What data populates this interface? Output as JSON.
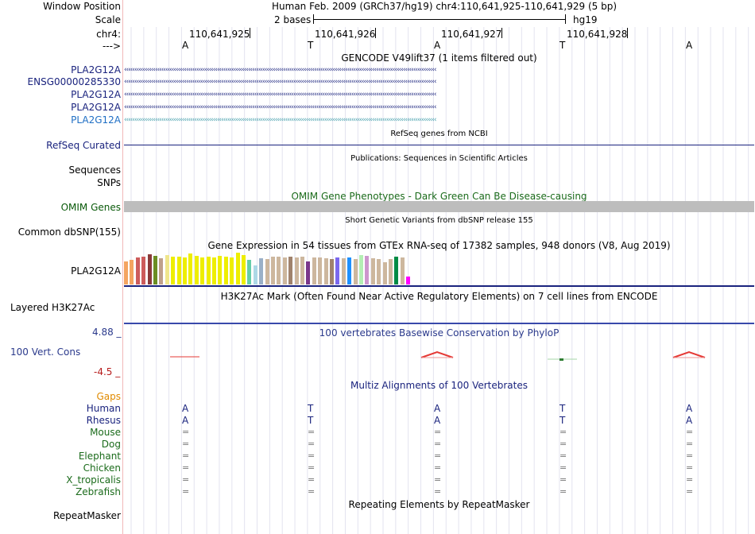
{
  "header": {
    "window_position_label": "Window Position",
    "title": "Human Feb. 2009 (GRCh37/hg19)   chr4:110,641,925-110,641,929 (5 bp)",
    "scale_label": "Scale",
    "scale_value": "2 bases",
    "assembly": "hg19",
    "chrom_label": "chr4:",
    "strand_label": "--->"
  },
  "positions": [
    "110,641,925",
    "110,641,926",
    "110,641,927",
    "110,641,928"
  ],
  "bases": [
    "A",
    "T",
    "A",
    "T",
    "A"
  ],
  "gencode": {
    "title": "GENCODE V49lift37 (1 items filtered out)",
    "genes": [
      "PLA2G12A",
      "ENSG00000285330",
      "PLA2G12A",
      "PLA2G12A",
      "PLA2G12A"
    ],
    "arrows": "‹‹‹‹‹‹‹‹‹‹‹‹‹‹‹‹‹‹‹‹‹‹‹‹‹‹‹‹‹‹‹‹‹‹‹‹‹‹‹‹‹‹‹‹‹‹‹‹‹‹‹‹‹‹‹‹‹‹‹‹‹‹‹‹‹‹‹‹‹‹‹‹‹‹‹‹‹‹‹‹‹‹‹‹‹‹‹‹‹‹‹‹‹‹‹‹‹‹‹‹‹‹‹‹‹‹‹‹‹‹‹‹‹‹‹‹‹‹‹‹‹‹‹‹‹‹‹‹‹‹‹‹‹‹‹‹‹‹‹‹‹‹‹‹‹‹‹‹‹‹‹"
  },
  "refseq": {
    "title": "RefSeq genes from NCBI",
    "label": "RefSeq Curated"
  },
  "publications": {
    "title": "Publications: Sequences in Scientific Articles",
    "label": "Sequences"
  },
  "snps": {
    "label": "SNPs"
  },
  "omim": {
    "title": "OMIM Gene Phenotypes - Dark Green Can Be Disease-causing",
    "label": "OMIM Genes"
  },
  "dbsnp": {
    "title": "Short Genetic Variants from dbSNP release 155",
    "label": "Common dbSNP(155)"
  },
  "gtex": {
    "title": "Gene Expression in 54 tissues from GTEx RNA-seq of 17382 samples, 948 donors (V8, Aug 2019)",
    "label": "PLA2G12A",
    "bars": [
      {
        "v": 0.7,
        "c": "#f4a460"
      },
      {
        "v": 0.74,
        "c": "#f4a460"
      },
      {
        "v": 0.8,
        "c": "#cd5c5c"
      },
      {
        "v": 0.84,
        "c": "#cd5c5c"
      },
      {
        "v": 0.9,
        "c": "#8b3a3a"
      },
      {
        "v": 0.86,
        "c": "#6b8e23"
      },
      {
        "v": 0.78,
        "c": "#bfa08a"
      },
      {
        "v": 0.88,
        "c": "#f0e68c"
      },
      {
        "v": 0.84,
        "c": "#eeee00"
      },
      {
        "v": 0.84,
        "c": "#eeee00"
      },
      {
        "v": 0.82,
        "c": "#eeee00"
      },
      {
        "v": 0.92,
        "c": "#eeee00"
      },
      {
        "v": 0.86,
        "c": "#eeee00"
      },
      {
        "v": 0.8,
        "c": "#eeee00"
      },
      {
        "v": 0.84,
        "c": "#eeee00"
      },
      {
        "v": 0.82,
        "c": "#eeee00"
      },
      {
        "v": 0.86,
        "c": "#eeee00"
      },
      {
        "v": 0.84,
        "c": "#eeee00"
      },
      {
        "v": 0.8,
        "c": "#eeee00"
      },
      {
        "v": 0.96,
        "c": "#eeee00"
      },
      {
        "v": 0.88,
        "c": "#eeee00"
      },
      {
        "v": 0.74,
        "c": "#66cdaa"
      },
      {
        "v": 0.58,
        "c": "#add8e6"
      },
      {
        "v": 0.78,
        "c": "#9ab0c8"
      },
      {
        "v": 0.76,
        "c": "#cdb79e"
      },
      {
        "v": 0.84,
        "c": "#cdb79e"
      },
      {
        "v": 0.84,
        "c": "#cdb79e"
      },
      {
        "v": 0.82,
        "c": "#cdb79e"
      },
      {
        "v": 0.84,
        "c": "#a0826d"
      },
      {
        "v": 0.82,
        "c": "#cdb79e"
      },
      {
        "v": 0.84,
        "c": "#cdb79e"
      },
      {
        "v": 0.7,
        "c": "#7a378b"
      },
      {
        "v": 0.8,
        "c": "#cdb79e"
      },
      {
        "v": 0.82,
        "c": "#cdb79e"
      },
      {
        "v": 0.78,
        "c": "#cdb79e"
      },
      {
        "v": 0.76,
        "c": "#a0826d"
      },
      {
        "v": 0.8,
        "c": "#7b68ee"
      },
      {
        "v": 0.78,
        "c": "#cdb79e"
      },
      {
        "v": 0.82,
        "c": "#1e90ff"
      },
      {
        "v": 0.76,
        "c": "#cdb79e"
      },
      {
        "v": 0.88,
        "c": "#b4eeb4"
      },
      {
        "v": 0.86,
        "c": "#cd96cd"
      },
      {
        "v": 0.78,
        "c": "#cdb79e"
      },
      {
        "v": 0.76,
        "c": "#cdb79e"
      },
      {
        "v": 0.66,
        "c": "#cdb79e"
      },
      {
        "v": 0.76,
        "c": "#cdb79e"
      },
      {
        "v": 0.84,
        "c": "#008b45"
      },
      {
        "v": 0.8,
        "c": "#cdb79e"
      },
      {
        "v": 0.24,
        "c": "#ff00ff"
      }
    ]
  },
  "h3k27ac": {
    "title": "H3K27Ac Mark (Often Found Near Active Regulatory Elements) on 7 cell lines from ENCODE",
    "label": "Layered H3K27Ac"
  },
  "phylop": {
    "title": "100 vertebrates Basewise Conservation by PhyloP",
    "label": "100 Vert. Cons",
    "max": "4.88 _",
    "min": "-4.5 _"
  },
  "multiz": {
    "title": "Multiz Alignments of 100 Vertebrates",
    "gaps_label": "Gaps",
    "species": [
      {
        "name": "Human",
        "row": "A,T,A,T,A"
      },
      {
        "name": "Rhesus",
        "row": "A,T,A,T,A"
      },
      {
        "name": "Mouse",
        "row": "=,=,=,=,="
      },
      {
        "name": "Dog",
        "row": "=,=,=,=,="
      },
      {
        "name": "Elephant",
        "row": "=,=,=,=,="
      },
      {
        "name": "Chicken",
        "row": "=,=,=,=,="
      },
      {
        "name": "X_tropicalis",
        "row": "=,=,=,=,="
      },
      {
        "name": "Zebrafish",
        "row": "=,=,=,=,="
      }
    ]
  },
  "repeatmasker": {
    "title": "Repeating Elements by RepeatMasker",
    "label": "RepeatMasker"
  },
  "colors": {
    "navy": "#1a237e",
    "gene_blue": "#1f6fc5",
    "omim_bar": "#bdbdbd",
    "phylop_red": "#e53935"
  }
}
